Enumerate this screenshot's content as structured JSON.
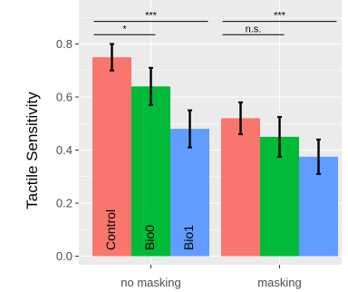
{
  "chart_data": {
    "type": "bar",
    "ylabel": "Tactile Sensitivity",
    "xlabel": "",
    "categories": [
      "no masking",
      "masking"
    ],
    "series": [
      {
        "name": "Control",
        "values": [
          0.75,
          0.52
        ],
        "errors": [
          0.05,
          0.06
        ],
        "color": "#F8766D"
      },
      {
        "name": "Bio0",
        "values": [
          0.64,
          0.45
        ],
        "errors": [
          0.07,
          0.075
        ],
        "color": "#00BA38"
      },
      {
        "name": "Bio1",
        "values": [
          0.48,
          0.375
        ],
        "errors": [
          0.07,
          0.065
        ],
        "color": "#619CFF"
      }
    ],
    "ylim": [
      -0.02,
      0.885
    ],
    "yticks": [
      0.0,
      0.2,
      0.4,
      0.6,
      0.8
    ],
    "ytick_labels": [
      "0.0",
      "0.2",
      "0.4",
      "0.6",
      "0.8"
    ],
    "grid": true,
    "panel_background": "#EBEBEB",
    "significance": [
      {
        "category": 0,
        "from": 0,
        "to": 2,
        "label": "***",
        "y": 0.885
      },
      {
        "category": 0,
        "from": 0,
        "to": 1,
        "label": "*",
        "y": 0.835
      },
      {
        "category": 1,
        "from": 0,
        "to": 2,
        "label": "***",
        "y": 0.885
      },
      {
        "category": 1,
        "from": 0,
        "to": 1,
        "label": "n.s.",
        "y": 0.835
      }
    ]
  }
}
